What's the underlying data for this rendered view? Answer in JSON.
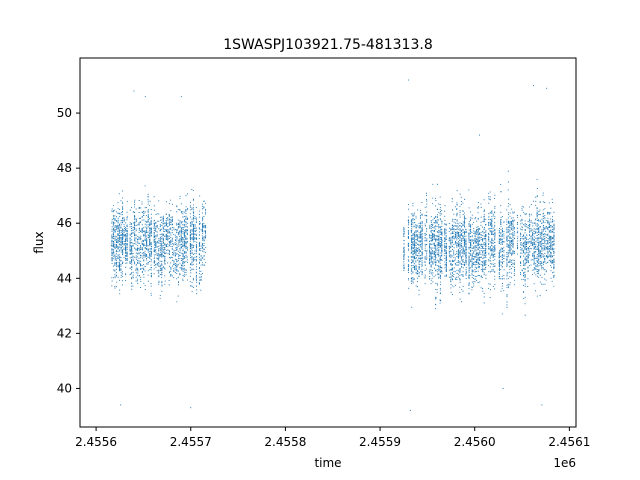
{
  "chart_data": {
    "type": "scatter",
    "title": "1SWASPJ103921.75-481313.8",
    "xlabel": "time",
    "ylabel": "flux",
    "x_offset_label": "1e6",
    "xlim": [
      2455583,
      2456107
    ],
    "ylim": [
      38.6,
      52.0
    ],
    "x_ticks": [
      2455600,
      2455700,
      2455800,
      2455900,
      2456000,
      2456100
    ],
    "x_tick_labels": [
      "2.4556",
      "2.4557",
      "2.4558",
      "2.4559",
      "2.4560",
      "2.4561"
    ],
    "y_ticks": [
      40,
      42,
      44,
      46,
      48,
      50
    ],
    "y_tick_labels": [
      "40",
      "42",
      "44",
      "46",
      "48",
      "50"
    ],
    "grid": false,
    "marker_color": "#1f77b4",
    "segments": [
      {
        "x_start": 2455615,
        "x_end": 2455717,
        "center": 45.3,
        "spread": 1.0
      },
      {
        "x_start": 2455925,
        "x_end": 2456085,
        "center": 45.2,
        "spread": 1.1
      }
    ],
    "series": [
      {
        "values": [
          [
            2455616,
            45.2
          ],
          [
            2455620,
            46.1
          ],
          [
            2455625,
            44.3
          ],
          [
            2455630,
            45.8
          ],
          [
            2455636,
            44.9
          ],
          [
            2455640,
            46.4
          ],
          [
            2455646,
            44.1
          ],
          [
            2455652,
            45.5
          ],
          [
            2455657,
            46.8
          ],
          [
            2455662,
            44.6
          ],
          [
            2455668,
            45.9
          ],
          [
            2455673,
            43.9
          ],
          [
            2455679,
            46.2
          ],
          [
            2455684,
            45.1
          ],
          [
            2455690,
            44.4
          ],
          [
            2455695,
            47.0
          ],
          [
            2455700,
            44.2
          ],
          [
            2455705,
            45.7
          ],
          [
            2455710,
            46.0
          ],
          [
            2455714,
            44.8
          ],
          [
            2455626,
            39.4
          ],
          [
            2455640,
            50.8
          ],
          [
            2455652,
            50.6
          ],
          [
            2455690,
            50.6
          ],
          [
            2455700,
            39.3
          ],
          [
            2455930,
            45.6
          ],
          [
            2455936,
            46.3
          ],
          [
            2455942,
            44.5
          ],
          [
            2455948,
            45.9
          ],
          [
            2455955,
            44.0
          ],
          [
            2455962,
            46.7
          ],
          [
            2455968,
            45.2
          ],
          [
            2455975,
            44.3
          ],
          [
            2455981,
            46.5
          ],
          [
            2455988,
            45.0
          ],
          [
            2455995,
            44.1
          ],
          [
            2456001,
            46.2
          ],
          [
            2456008,
            45.4
          ],
          [
            2456015,
            43.8
          ],
          [
            2456021,
            46.9
          ],
          [
            2456028,
            45.1
          ],
          [
            2456035,
            44.2
          ],
          [
            2456042,
            46.4
          ],
          [
            2456049,
            45.3
          ],
          [
            2456056,
            43.7
          ],
          [
            2456062,
            46.8
          ],
          [
            2456069,
            44.6
          ],
          [
            2456075,
            45.7
          ],
          [
            2456081,
            44.4
          ],
          [
            2456084,
            45.9
          ],
          [
            2455930,
            51.2
          ],
          [
            2455932,
            39.2
          ],
          [
            2456005,
            49.2
          ],
          [
            2456030,
            40.0
          ],
          [
            2456062,
            51.0
          ],
          [
            2456071,
            39.4
          ],
          [
            2456076,
            50.9
          ]
        ]
      }
    ]
  }
}
